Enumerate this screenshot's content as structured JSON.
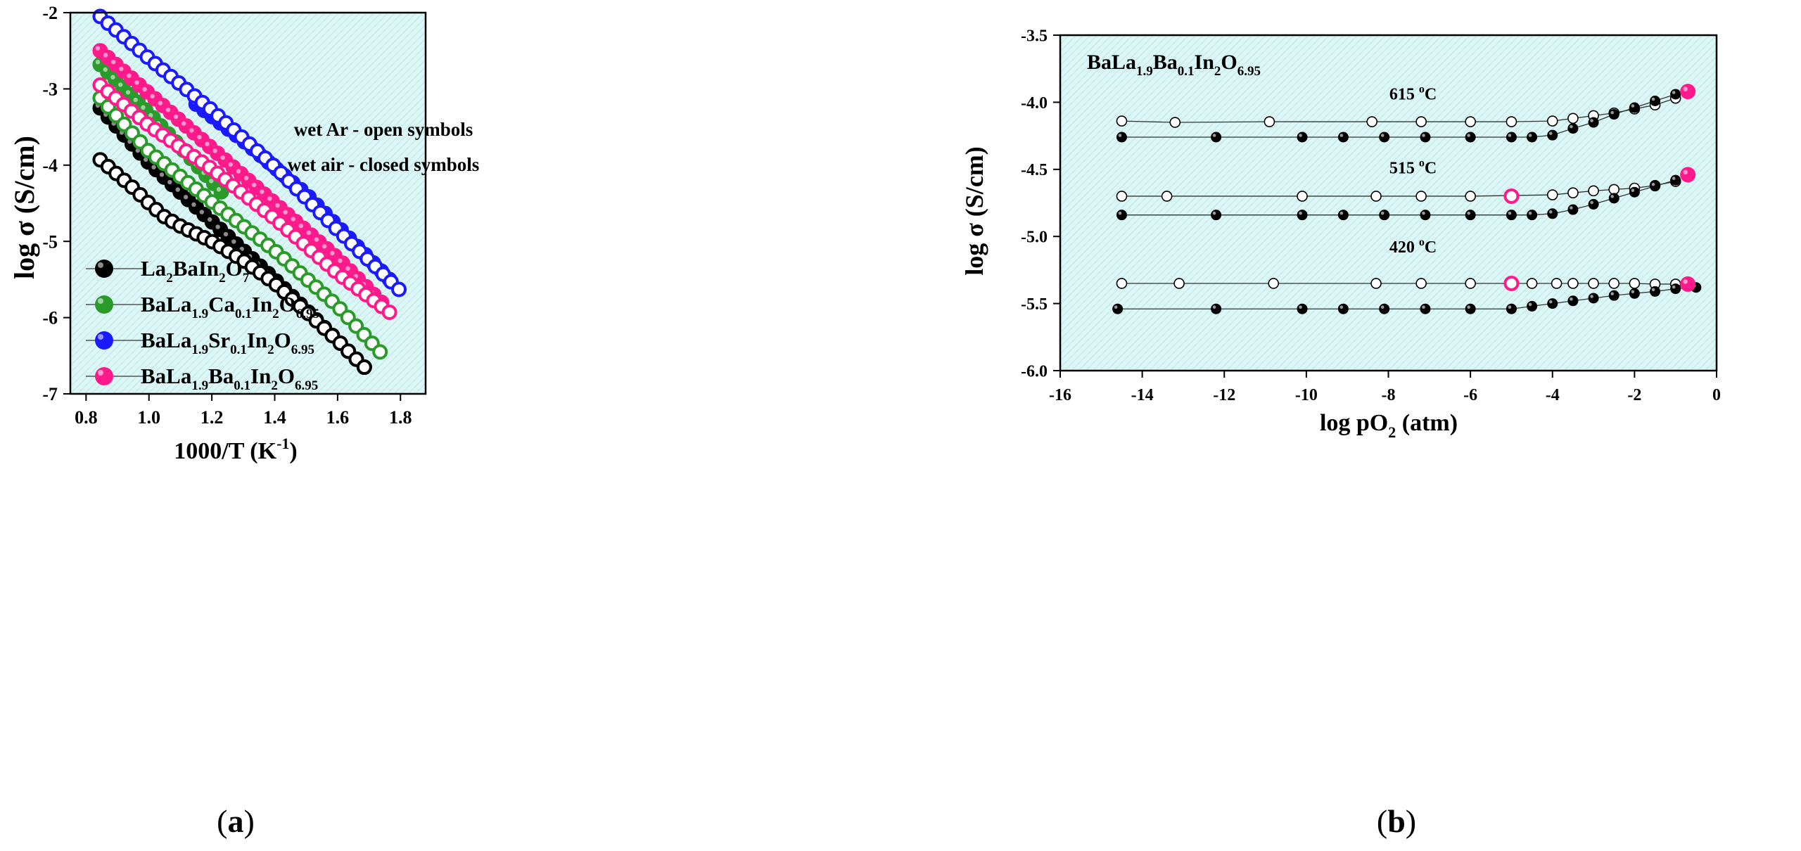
{
  "panel_labels": {
    "a": {
      "open": "(",
      "letter": "a",
      "close": ")"
    },
    "b": {
      "open": "(",
      "letter": "b",
      "close": ")"
    }
  },
  "colors": {
    "plot_bg": "#dcf6f6",
    "hatch": "#c2ecec",
    "black": "#000000",
    "green": "#2a9a2a",
    "blue": "#1a1aff",
    "pink": "#ff1a8c",
    "line": "#555555"
  },
  "chart_data": [
    {
      "id": "a",
      "type": "scatter",
      "xlabel": {
        "main": "1000/T (K",
        "sup": "-1",
        "tail": ")"
      },
      "ylabel": "log σ (S/cm)",
      "xlim": [
        0.75,
        1.88
      ],
      "ylim": [
        -7,
        -2
      ],
      "xticks": [
        {
          "v": 0.8,
          "label": "0.8"
        },
        {
          "v": 1.0,
          "label": "1.0"
        },
        {
          "v": 1.2,
          "label": "1.2"
        },
        {
          "v": 1.4,
          "label": "1.4"
        },
        {
          "v": 1.6,
          "label": "1.6"
        },
        {
          "v": 1.8,
          "label": "1.8"
        }
      ],
      "yticks": [
        {
          "v": -2,
          "label": "-2"
        },
        {
          "v": -3,
          "label": "-3"
        },
        {
          "v": -4,
          "label": "-4"
        },
        {
          "v": -5,
          "label": "-5"
        },
        {
          "v": -6,
          "label": "-6"
        },
        {
          "v": -7,
          "label": "-7"
        }
      ],
      "annotations": [
        "wet Ar - open symbols",
        "wet air - closed symbols"
      ],
      "legend": [
        {
          "parts": [
            [
              "La",
              ""
            ],
            [
              "2",
              "sub"
            ],
            [
              "BaIn",
              ""
            ],
            [
              "2",
              "sub"
            ],
            [
              "O",
              ""
            ],
            [
              "7",
              "sub"
            ]
          ]
        },
        {
          "parts": [
            [
              "BaLa",
              ""
            ],
            [
              "1.9",
              "sub"
            ],
            [
              "Ca",
              ""
            ],
            [
              "0.1",
              "sub"
            ],
            [
              "In",
              ""
            ],
            [
              "2",
              "sub"
            ],
            [
              "O",
              ""
            ],
            [
              "6.95",
              "sub"
            ]
          ]
        },
        {
          "parts": [
            [
              "BaLa",
              ""
            ],
            [
              "1.9",
              "sub"
            ],
            [
              "Sr",
              ""
            ],
            [
              "0.1",
              "sub"
            ],
            [
              "In",
              ""
            ],
            [
              "2",
              "sub"
            ],
            [
              "O",
              ""
            ],
            [
              "6.95",
              "sub"
            ]
          ]
        },
        {
          "parts": [
            [
              "BaLa",
              ""
            ],
            [
              "1.9",
              "sub"
            ],
            [
              "Ba",
              ""
            ],
            [
              "0.1",
              "sub"
            ],
            [
              "In",
              ""
            ],
            [
              "2",
              "sub"
            ],
            [
              "O",
              ""
            ],
            [
              "6.95",
              "sub"
            ]
          ]
        }
      ],
      "series": [
        {
          "name": "La2BaIn2O7 closed",
          "color": "#000000",
          "fill": "closed",
          "x0": 0.845,
          "x1": 1.685,
          "n": 34,
          "pts": [
            [
              0.845,
              -3.25
            ],
            [
              1.0,
              -3.97
            ],
            [
              1.2,
              -4.74
            ],
            [
              1.4,
              -5.5
            ],
            [
              1.6,
              -6.3
            ],
            [
              1.685,
              -6.65
            ]
          ]
        },
        {
          "name": "La2BaIn2O7 open",
          "color": "#000000",
          "fill": "open",
          "x0": 0.845,
          "x1": 1.685,
          "n": 34,
          "pts": [
            [
              0.845,
              -3.93
            ],
            [
              0.95,
              -4.3
            ],
            [
              1.0,
              -4.5
            ],
            [
              1.05,
              -4.68
            ],
            [
              1.1,
              -4.8
            ],
            [
              1.2,
              -5.0
            ],
            [
              1.3,
              -5.25
            ],
            [
              1.4,
              -5.55
            ],
            [
              1.5,
              -5.92
            ],
            [
              1.6,
              -6.3
            ],
            [
              1.685,
              -6.65
            ]
          ]
        },
        {
          "name": "BaLa1.9Ca0.1In2O6.95 closed",
          "color": "#2a9a2a",
          "fill": "closed",
          "x0": 0.845,
          "x1": 1.23,
          "n": 17,
          "pts": [
            [
              0.845,
              -2.68
            ],
            [
              1.0,
              -3.32
            ],
            [
              1.1,
              -3.76
            ],
            [
              1.23,
              -4.35
            ]
          ]
        },
        {
          "name": "BaLa1.9Ca0.1In2O6.95 open",
          "color": "#2a9a2a",
          "fill": "open",
          "x0": 0.845,
          "x1": 1.735,
          "n": 36,
          "pts": [
            [
              0.845,
              -3.12
            ],
            [
              1.0,
              -3.82
            ],
            [
              1.2,
              -4.48
            ],
            [
              1.4,
              -5.12
            ],
            [
              1.6,
              -5.85
            ],
            [
              1.735,
              -6.45
            ]
          ]
        },
        {
          "name": "BaLa1.9Sr0.1In2O6.95 closed",
          "color": "#1a1aff",
          "fill": "closed",
          "x0": 1.15,
          "x1": 1.765,
          "n": 25,
          "pts": [
            [
              1.15,
              -3.2
            ],
            [
              1.3,
              -3.68
            ],
            [
              1.5,
              -4.38
            ],
            [
              1.765,
              -5.5
            ]
          ]
        },
        {
          "name": "BaLa1.9Sr0.1In2O6.95 open",
          "color": "#1a1aff",
          "fill": "open",
          "x0": 0.845,
          "x1": 1.795,
          "n": 39,
          "pts": [
            [
              0.845,
              -2.05
            ],
            [
              1.0,
              -2.6
            ],
            [
              1.2,
              -3.28
            ],
            [
              1.4,
              -4.02
            ],
            [
              1.6,
              -4.85
            ],
            [
              1.795,
              -5.63
            ]
          ]
        },
        {
          "name": "BaLa1.9Ba0.1In2O6.95 closed",
          "color": "#ff1a8c",
          "fill": "closed",
          "x0": 0.845,
          "x1": 1.74,
          "n": 37,
          "pts": [
            [
              0.845,
              -2.5
            ],
            [
              1.0,
              -3.06
            ],
            [
              1.2,
              -3.78
            ],
            [
              1.4,
              -4.5
            ],
            [
              1.6,
              -5.22
            ],
            [
              1.74,
              -5.8
            ]
          ]
        },
        {
          "name": "BaLa1.9Ba0.1In2O6.95 open",
          "color": "#ff1a8c",
          "fill": "open",
          "x0": 0.845,
          "x1": 1.765,
          "n": 38,
          "pts": [
            [
              0.845,
              -2.95
            ],
            [
              1.0,
              -3.48
            ],
            [
              1.2,
              -4.05
            ],
            [
              1.4,
              -4.7
            ],
            [
              1.6,
              -5.42
            ],
            [
              1.765,
              -5.93
            ]
          ]
        }
      ]
    },
    {
      "id": "b",
      "type": "scatter",
      "xlabel": {
        "main": "log pO",
        "sub": "2",
        "tail": " (atm)"
      },
      "ylabel": "log σ (S/cm)",
      "xlim": [
        -16,
        0
      ],
      "ylim": [
        -6.0,
        -3.5
      ],
      "xticks": [
        {
          "v": -16,
          "label": "-16"
        },
        {
          "v": -14,
          "label": "-14"
        },
        {
          "v": -12,
          "label": "-12"
        },
        {
          "v": -10,
          "label": "-10"
        },
        {
          "v": -8,
          "label": "-8"
        },
        {
          "v": -6,
          "label": "-6"
        },
        {
          "v": -4,
          "label": "-4"
        },
        {
          "v": -2,
          "label": "-2"
        },
        {
          "v": 0,
          "label": "0"
        }
      ],
      "yticks": [
        {
          "v": -3.5,
          "label": "-3.5"
        },
        {
          "v": -4.0,
          "label": "-4.0"
        },
        {
          "v": -4.5,
          "label": "-4.5"
        },
        {
          "v": -5.0,
          "label": "-5.0"
        },
        {
          "v": -5.5,
          "label": "-5.5"
        },
        {
          "v": -6.0,
          "label": "-6.0"
        }
      ],
      "composition": [
        [
          "BaLa",
          ""
        ],
        [
          "1.9",
          "sub"
        ],
        [
          "Ba",
          ""
        ],
        [
          "0.1",
          "sub"
        ],
        [
          "In",
          ""
        ],
        [
          "2",
          "sub"
        ],
        [
          "O",
          ""
        ],
        [
          "6.95",
          "sub"
        ]
      ],
      "temperature_labels": [
        {
          "value": "615 ",
          "unit_sup": "o",
          "unit": "C",
          "x": -7.4,
          "y": -3.98
        },
        {
          "value": "515 ",
          "unit_sup": "o",
          "unit": "C",
          "x": -7.4,
          "y": -4.53
        },
        {
          "value": "420 ",
          "unit_sup": "o",
          "unit": "C",
          "x": -7.4,
          "y": -5.12
        }
      ],
      "series": [
        {
          "name": "615 open",
          "fill": "open",
          "x": [
            -14.5,
            -13.2,
            -10.9,
            -8.4,
            -7.2,
            -6.0,
            -5.0,
            -4.0,
            -3.5,
            -3.0,
            -2.5,
            -2.0,
            -1.5,
            -1.0
          ],
          "y": [
            -4.14,
            -4.15,
            -4.145,
            -4.145,
            -4.145,
            -4.145,
            -4.145,
            -4.14,
            -4.12,
            -4.1,
            -4.08,
            -4.05,
            -4.02,
            -3.97
          ]
        },
        {
          "name": "615 closed",
          "fill": "closed",
          "x": [
            -14.5,
            -12.2,
            -10.1,
            -9.1,
            -8.1,
            -7.1,
            -6.0,
            -5.0,
            -4.5,
            -4.0,
            -3.5,
            -3.0,
            -2.5,
            -2.0,
            -1.5,
            -1.0
          ],
          "y": [
            -4.26,
            -4.26,
            -4.26,
            -4.26,
            -4.26,
            -4.26,
            -4.26,
            -4.26,
            -4.26,
            -4.245,
            -4.195,
            -4.15,
            -4.09,
            -4.04,
            -3.99,
            -3.94
          ]
        },
        {
          "name": "615 air",
          "fill": "accent",
          "x": [
            -0.7
          ],
          "y": [
            -3.92
          ]
        },
        {
          "name": "515 open",
          "fill": "open",
          "x": [
            -14.5,
            -13.4,
            -10.1,
            -8.3,
            -7.2,
            -6.0,
            -4.0,
            -3.5,
            -3.0,
            -2.5,
            -2.0,
            -1.5,
            -1.0
          ],
          "y": [
            -4.7,
            -4.7,
            -4.7,
            -4.7,
            -4.7,
            -4.7,
            -4.69,
            -4.675,
            -4.66,
            -4.65,
            -4.64,
            -4.62,
            -4.59
          ]
        },
        {
          "name": "515 open air",
          "fill": "accent-open",
          "x": [
            -5.0
          ],
          "y": [
            -4.7
          ]
        },
        {
          "name": "515 closed",
          "fill": "closed",
          "x": [
            -14.5,
            -12.2,
            -10.1,
            -9.1,
            -8.1,
            -7.1,
            -6.0,
            -5.0,
            -4.5,
            -4.0,
            -3.5,
            -3.0,
            -2.5,
            -2.0,
            -1.5,
            -1.0
          ],
          "y": [
            -4.84,
            -4.84,
            -4.84,
            -4.84,
            -4.84,
            -4.84,
            -4.84,
            -4.84,
            -4.84,
            -4.83,
            -4.8,
            -4.76,
            -4.715,
            -4.67,
            -4.625,
            -4.58
          ]
        },
        {
          "name": "515 air",
          "fill": "accent",
          "x": [
            -0.7
          ],
          "y": [
            -4.54
          ]
        },
        {
          "name": "420 open",
          "fill": "open",
          "x": [
            -14.5,
            -13.1,
            -10.8,
            -8.3,
            -7.2,
            -6.0,
            -4.5,
            -3.9,
            -3.5,
            -3.0,
            -2.5,
            -2.0,
            -1.5,
            -1.0
          ],
          "y": [
            -5.35,
            -5.35,
            -5.35,
            -5.35,
            -5.35,
            -5.35,
            -5.35,
            -5.35,
            -5.35,
            -5.35,
            -5.35,
            -5.35,
            -5.355,
            -5.355
          ]
        },
        {
          "name": "420 open air",
          "fill": "accent-open",
          "x": [
            -5.0
          ],
          "y": [
            -5.35
          ]
        },
        {
          "name": "420 closed",
          "fill": "closed",
          "x": [
            -14.6,
            -12.2,
            -10.1,
            -9.1,
            -8.1,
            -7.1,
            -6.0,
            -5.0,
            -4.5,
            -4.0,
            -3.5,
            -3.0,
            -2.5,
            -2.0,
            -1.5,
            -1.0,
            -0.5
          ],
          "y": [
            -5.54,
            -5.54,
            -5.54,
            -5.54,
            -5.54,
            -5.54,
            -5.54,
            -5.54,
            -5.52,
            -5.5,
            -5.48,
            -5.46,
            -5.44,
            -5.425,
            -5.41,
            -5.39,
            -5.38
          ]
        },
        {
          "name": "420 air",
          "fill": "accent",
          "x": [
            -0.7
          ],
          "y": [
            -5.355
          ]
        }
      ]
    }
  ]
}
